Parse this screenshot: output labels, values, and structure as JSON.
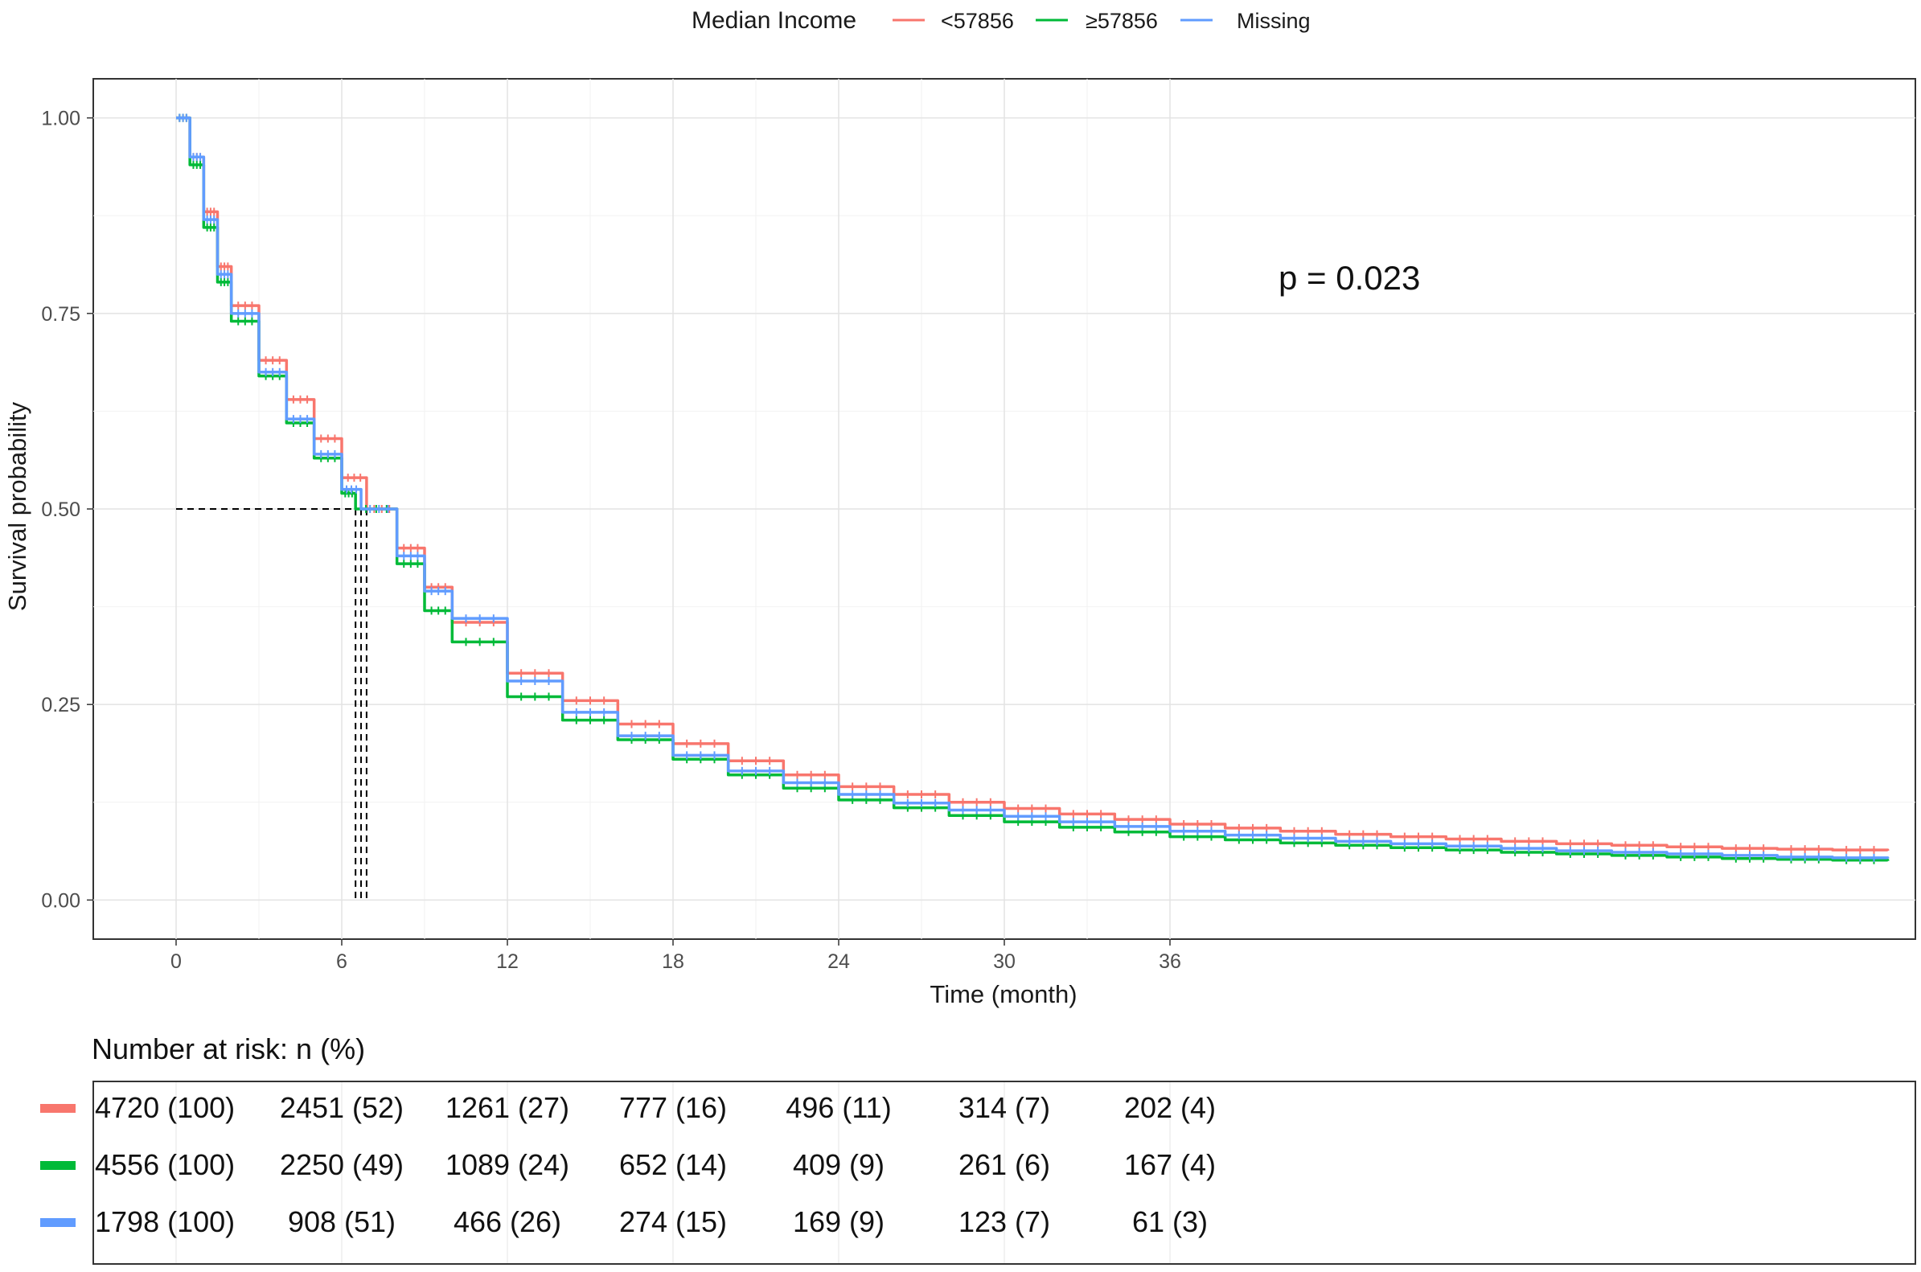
{
  "chart_data": {
    "type": "line",
    "legend": {
      "title": "Median Income",
      "position": "top",
      "entries": [
        {
          "label": "<57856",
          "color": "#F8766D"
        },
        {
          "label": "≥57856",
          "color": "#00BA38"
        },
        {
          "label": "Missing",
          "color": "#619CFF"
        }
      ]
    },
    "xlabel": "Time (month)",
    "ylabel": "Survival probability",
    "xlim": [
      -3,
      63
    ],
    "ylim": [
      -0.05,
      1.05
    ],
    "xticks": [
      0,
      6,
      12,
      18,
      24,
      30,
      36
    ],
    "xtick_labels": [
      "0",
      "6",
      "12",
      "18",
      "24",
      "30",
      "36"
    ],
    "yticks": [
      0,
      0.25,
      0.5,
      0.75,
      1
    ],
    "ytick_labels": [
      "0.00",
      "0.25",
      "0.50",
      "0.75",
      "1.00"
    ],
    "grid": true,
    "annotation": "p = 0.023",
    "median_survival": [
      {
        "series": "<57856",
        "x": 6.9
      },
      {
        "series": "≥57856",
        "x": 6.5
      },
      {
        "series": "Missing",
        "x": 6.7
      }
    ],
    "series": [
      {
        "name": "<57856",
        "color": "#F8766D",
        "x": [
          0,
          0.5,
          1,
          1.5,
          2,
          3,
          4,
          5,
          6,
          6.9,
          8,
          9,
          10,
          12,
          14,
          16,
          18,
          20,
          22,
          24,
          26,
          28,
          30,
          32,
          34,
          36,
          38,
          40,
          42,
          44,
          46,
          48,
          50,
          52,
          54,
          56,
          58,
          60,
          62
        ],
        "y": [
          1.0,
          0.95,
          0.88,
          0.81,
          0.76,
          0.69,
          0.64,
          0.59,
          0.54,
          0.5,
          0.45,
          0.4,
          0.355,
          0.29,
          0.255,
          0.225,
          0.2,
          0.178,
          0.16,
          0.145,
          0.135,
          0.125,
          0.117,
          0.11,
          0.103,
          0.097,
          0.092,
          0.088,
          0.084,
          0.081,
          0.078,
          0.075,
          0.072,
          0.07,
          0.068,
          0.066,
          0.065,
          0.064,
          0.063
        ]
      },
      {
        "name": "≥57856",
        "color": "#00BA38",
        "x": [
          0,
          0.5,
          1,
          1.5,
          2,
          3,
          4,
          5,
          6,
          6.5,
          8,
          9,
          10,
          12,
          14,
          16,
          18,
          20,
          22,
          24,
          26,
          28,
          30,
          32,
          34,
          36,
          38,
          40,
          42,
          44,
          46,
          48,
          50,
          52,
          54,
          56,
          58,
          60,
          62
        ],
        "y": [
          1.0,
          0.94,
          0.86,
          0.79,
          0.74,
          0.67,
          0.61,
          0.565,
          0.52,
          0.5,
          0.43,
          0.37,
          0.33,
          0.26,
          0.23,
          0.205,
          0.18,
          0.16,
          0.143,
          0.128,
          0.118,
          0.108,
          0.1,
          0.093,
          0.087,
          0.081,
          0.077,
          0.073,
          0.07,
          0.067,
          0.064,
          0.061,
          0.059,
          0.057,
          0.055,
          0.053,
          0.052,
          0.051,
          0.05
        ]
      },
      {
        "name": "Missing",
        "color": "#619CFF",
        "x": [
          0,
          0.5,
          1,
          1.5,
          2,
          3,
          4,
          5,
          6,
          6.7,
          8,
          9,
          10,
          12,
          14,
          16,
          18,
          20,
          22,
          24,
          26,
          28,
          30,
          32,
          34,
          36,
          38,
          40,
          42,
          44,
          46,
          48,
          50,
          52,
          54,
          56,
          58,
          60,
          62
        ],
        "y": [
          1.0,
          0.95,
          0.87,
          0.8,
          0.75,
          0.675,
          0.615,
          0.57,
          0.525,
          0.5,
          0.44,
          0.395,
          0.36,
          0.28,
          0.24,
          0.21,
          0.185,
          0.165,
          0.15,
          0.135,
          0.124,
          0.115,
          0.107,
          0.1,
          0.094,
          0.088,
          0.083,
          0.079,
          0.075,
          0.072,
          0.069,
          0.066,
          0.063,
          0.061,
          0.059,
          0.057,
          0.055,
          0.054,
          0.053
        ]
      }
    ]
  },
  "risk_table": {
    "title": "Number at risk: n (%)",
    "rows": [
      {
        "color": "#F8766D",
        "cells": [
          "4720 (100)",
          "2451 (52)",
          "1261 (27)",
          "777 (16)",
          "496 (11)",
          "314 (7)",
          "202 (4)"
        ]
      },
      {
        "color": "#00BA38",
        "cells": [
          "4556 (100)",
          "2250 (49)",
          "1089 (24)",
          "652 (14)",
          "409 (9)",
          "261 (6)",
          "167 (4)"
        ]
      },
      {
        "color": "#619CFF",
        "cells": [
          "1798 (100)",
          "908 (51)",
          "466 (26)",
          "274 (15)",
          "169 (9)",
          "123 (7)",
          "61 (3)"
        ]
      }
    ]
  }
}
